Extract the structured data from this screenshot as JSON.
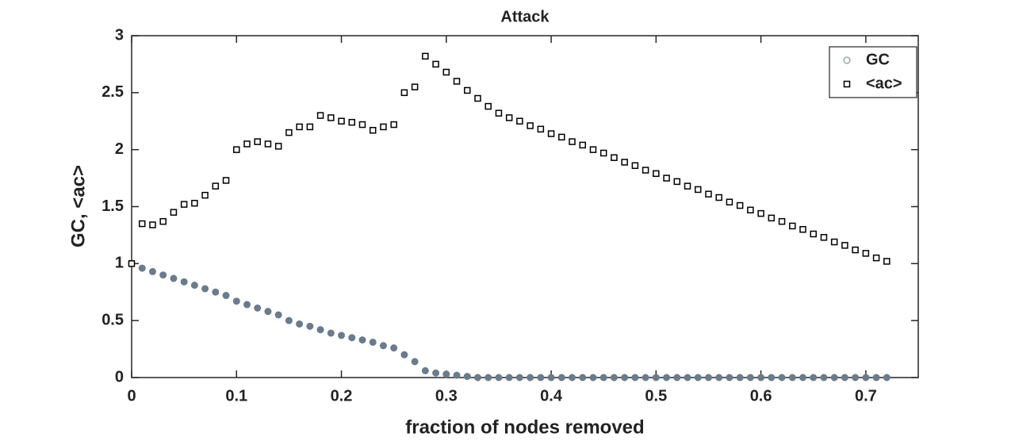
{
  "chart_data": {
    "type": "scatter",
    "title": "Attack",
    "x_label": "fraction of nodes removed",
    "y_label": "GC, <ac>",
    "x": [
      0,
      0.01,
      0.02,
      0.03,
      0.04,
      0.05,
      0.06,
      0.07,
      0.08,
      0.09,
      0.1,
      0.11,
      0.12,
      0.13,
      0.14,
      0.15,
      0.16,
      0.17,
      0.18,
      0.19,
      0.2,
      0.21,
      0.22,
      0.23,
      0.24,
      0.25,
      0.26,
      0.27,
      0.28,
      0.29,
      0.3,
      0.31,
      0.32,
      0.33,
      0.34,
      0.35,
      0.36,
      0.37,
      0.38,
      0.39,
      0.4,
      0.41,
      0.42,
      0.43,
      0.44,
      0.45,
      0.46,
      0.47,
      0.48,
      0.49,
      0.5,
      0.51,
      0.52,
      0.53,
      0.54,
      0.55,
      0.56,
      0.57,
      0.58,
      0.59,
      0.6,
      0.61,
      0.62,
      0.63,
      0.64,
      0.65,
      0.66,
      0.67,
      0.68,
      0.69,
      0.7,
      0.71,
      0.72
    ],
    "series": [
      {
        "name": "GC",
        "color": "#6a7b8c",
        "marker": "circle",
        "values": [
          1.0,
          0.96,
          0.93,
          0.9,
          0.87,
          0.84,
          0.81,
          0.78,
          0.75,
          0.72,
          0.67,
          0.64,
          0.61,
          0.58,
          0.55,
          0.5,
          0.47,
          0.45,
          0.42,
          0.39,
          0.37,
          0.35,
          0.33,
          0.31,
          0.28,
          0.26,
          0.2,
          0.14,
          0.06,
          0.04,
          0.03,
          0.02,
          0.01,
          0,
          0,
          0,
          0,
          0,
          0,
          0,
          0,
          0,
          0,
          0,
          0,
          0,
          0,
          0,
          0,
          0,
          0,
          0,
          0,
          0,
          0,
          0,
          0,
          0,
          0,
          0,
          0,
          0,
          0,
          0,
          0,
          0,
          0,
          0,
          0,
          0,
          0,
          0,
          0
        ]
      },
      {
        "name": "<ac>",
        "color": "#000000",
        "marker": "square",
        "values": [
          1.0,
          1.35,
          1.34,
          1.37,
          1.45,
          1.52,
          1.53,
          1.6,
          1.68,
          1.73,
          2.0,
          2.05,
          2.07,
          2.05,
          2.03,
          2.15,
          2.2,
          2.2,
          2.3,
          2.28,
          2.25,
          2.24,
          2.22,
          2.17,
          2.2,
          2.22,
          2.5,
          2.55,
          2.82,
          2.75,
          2.68,
          2.6,
          2.52,
          2.45,
          2.38,
          2.32,
          2.28,
          2.25,
          2.21,
          2.18,
          2.14,
          2.11,
          2.07,
          2.04,
          2.0,
          1.97,
          1.93,
          1.89,
          1.86,
          1.82,
          1.79,
          1.75,
          1.72,
          1.68,
          1.65,
          1.61,
          1.58,
          1.54,
          1.51,
          1.47,
          1.44,
          1.4,
          1.37,
          1.33,
          1.3,
          1.26,
          1.23,
          1.19,
          1.16,
          1.12,
          1.09,
          1.05,
          1.02
        ]
      }
    ],
    "xlim": [
      0,
      0.75
    ],
    "xticks": [
      0,
      0.1,
      0.2,
      0.3,
      0.4,
      0.5,
      0.6,
      0.7
    ],
    "ylim": [
      0,
      3
    ],
    "yticks": [
      0,
      0.5,
      1,
      1.5,
      2,
      2.5,
      3
    ],
    "legend": "northeast"
  }
}
